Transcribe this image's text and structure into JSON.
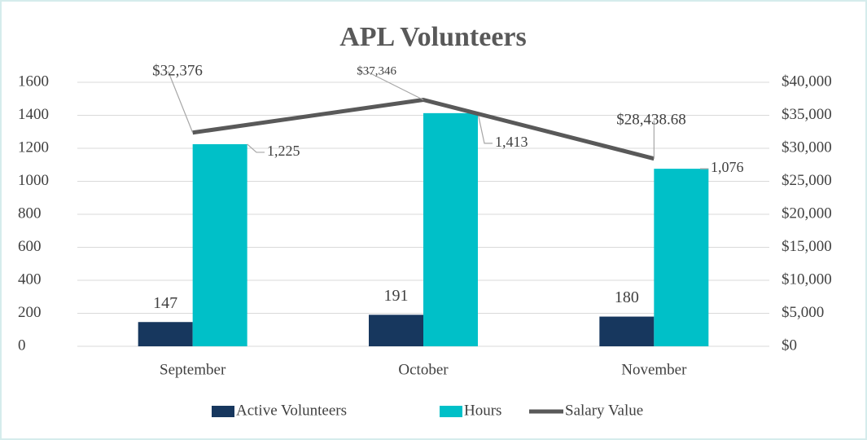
{
  "chart_data": {
    "type": "bar",
    "title": "APL Volunteers",
    "categories": [
      "September",
      "October",
      "November"
    ],
    "series": [
      {
        "name": "Active Volunteers",
        "color": "#17375e",
        "values": [
          147,
          191,
          180
        ]
      },
      {
        "name": "Hours",
        "color": "#00c0c8",
        "values": [
          1225,
          1413,
          1076
        ],
        "value_labels": [
          "1,225",
          "1,413",
          "1,076"
        ]
      },
      {
        "name": "Salary Value",
        "color": "#595959",
        "type": "line",
        "axis": "y2",
        "values": [
          32376,
          37346,
          28438.68
        ],
        "value_labels": [
          "$32,376",
          "$37,346",
          "$28,438.68"
        ]
      }
    ],
    "ylim": [
      0,
      1600
    ],
    "yticks": [
      0,
      200,
      400,
      600,
      800,
      1000,
      1200,
      1400,
      1600
    ],
    "y2lim": [
      0,
      40000
    ],
    "y2ticks": [
      {
        "value": 0,
        "label": "$0"
      },
      {
        "value": 5000,
        "label": "$5,000"
      },
      {
        "value": 10000,
        "label": "$10,000"
      },
      {
        "value": 15000,
        "label": "$15,000"
      },
      {
        "value": 20000,
        "label": "$20,000"
      },
      {
        "value": 25000,
        "label": "$25,000"
      },
      {
        "value": 30000,
        "label": "$30,000"
      },
      {
        "value": 35000,
        "label": "$35,000"
      },
      {
        "value": 40000,
        "label": "$40,000"
      }
    ],
    "grid": true,
    "legend": "bottom"
  }
}
